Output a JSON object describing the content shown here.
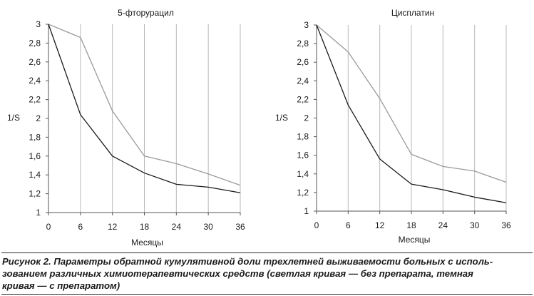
{
  "chart_data": [
    {
      "type": "line",
      "title": "5-фторурацил",
      "xlabel": "Месяцы",
      "ylabel": "1/S",
      "x": [
        0,
        6,
        12,
        18,
        24,
        30,
        36
      ],
      "xlim": [
        0,
        36
      ],
      "ylim": [
        1,
        3
      ],
      "x_ticks": [
        "0",
        "6",
        "12",
        "18",
        "24",
        "30",
        "36"
      ],
      "y_ticks": [
        "1",
        "1,2",
        "1,4",
        "1,6",
        "1,8",
        "2",
        "2,2",
        "2,4",
        "2,6",
        "2,8",
        "3"
      ],
      "grid": "vertical",
      "legend": "none",
      "series": [
        {
          "color": "#9a9a9a",
          "values": [
            3.0,
            2.86,
            2.08,
            1.6,
            1.52,
            1.41,
            1.29
          ]
        },
        {
          "color": "#1a1a1a",
          "values": [
            3.0,
            2.04,
            1.6,
            1.42,
            1.3,
            1.27,
            1.21
          ]
        }
      ]
    },
    {
      "type": "line",
      "title": "Цисплатин",
      "xlabel": "Месяцы",
      "ylabel": "1/S",
      "x": [
        0,
        6,
        12,
        18,
        24,
        30,
        36
      ],
      "xlim": [
        0,
        36
      ],
      "ylim": [
        1,
        3
      ],
      "x_ticks": [
        "0",
        "6",
        "12",
        "18",
        "24",
        "30",
        "36"
      ],
      "y_ticks": [
        "1",
        "1,2",
        "1,4",
        "1,6",
        "1,8",
        "2",
        "2,2",
        "2,4",
        "2,6",
        "2,8",
        "3"
      ],
      "grid": "vertical",
      "legend": "none",
      "series": [
        {
          "color": "#9a9a9a",
          "values": [
            3.0,
            2.71,
            2.21,
            1.61,
            1.48,
            1.43,
            1.31
          ]
        },
        {
          "color": "#1a1a1a",
          "values": [
            3.0,
            2.14,
            1.56,
            1.29,
            1.23,
            1.15,
            1.09
          ]
        }
      ]
    }
  ],
  "caption": {
    "line1": "Рисунок 2. Параметры обратной кумулятивной доли трехлетней выживаемости больных с исполь-",
    "line2": "зованием различных химиотерапевтических средств (светлая кривая — без препарата, темная",
    "line3": "кривая — с препаратом)"
  }
}
